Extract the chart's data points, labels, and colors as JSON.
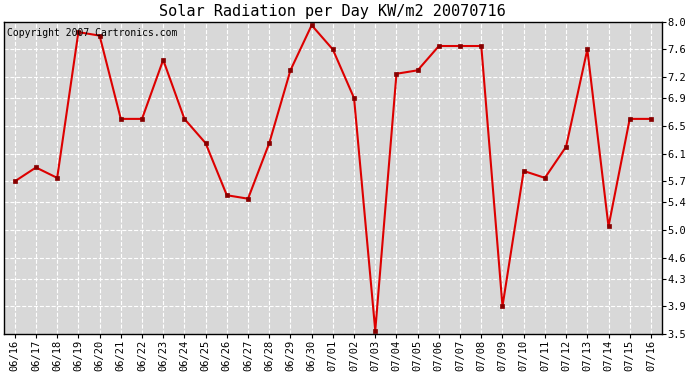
{
  "title": "Solar Radiation per Day KW/m2 20070716",
  "copyright_text": "Copyright 2007 Cartronics.com",
  "x_labels": [
    "06/16",
    "06/17",
    "06/18",
    "06/19",
    "06/20",
    "06/21",
    "06/22",
    "06/23",
    "06/24",
    "06/25",
    "06/26",
    "06/27",
    "06/28",
    "06/29",
    "06/30",
    "07/01",
    "07/02",
    "07/03",
    "07/04",
    "07/05",
    "07/06",
    "07/07",
    "07/08",
    "07/09",
    "07/10",
    "07/11",
    "07/12",
    "07/13",
    "07/14",
    "07/15",
    "07/16"
  ],
  "y_values": [
    5.7,
    5.9,
    5.75,
    7.85,
    7.8,
    6.6,
    6.6,
    7.45,
    6.6,
    6.25,
    5.5,
    5.45,
    6.25,
    7.3,
    7.95,
    7.6,
    6.9,
    3.55,
    7.25,
    7.3,
    7.65,
    7.65,
    7.65,
    3.9,
    5.85,
    5.75,
    6.2,
    7.6,
    5.05,
    6.6,
    6.6
  ],
  "y_ticks": [
    3.5,
    3.9,
    4.3,
    4.6,
    5.0,
    5.4,
    5.7,
    6.1,
    6.5,
    6.9,
    7.2,
    7.6,
    8.0
  ],
  "y_min": 3.5,
  "y_max": 8.0,
  "line_color": "#dd0000",
  "marker_color": "#880000",
  "bg_color": "#ffffff",
  "plot_bg_color": "#d8d8d8",
  "grid_color": "#ffffff",
  "title_fontsize": 11,
  "copyright_fontsize": 7,
  "tick_fontsize": 7.5,
  "figwidth": 6.9,
  "figheight": 3.75
}
